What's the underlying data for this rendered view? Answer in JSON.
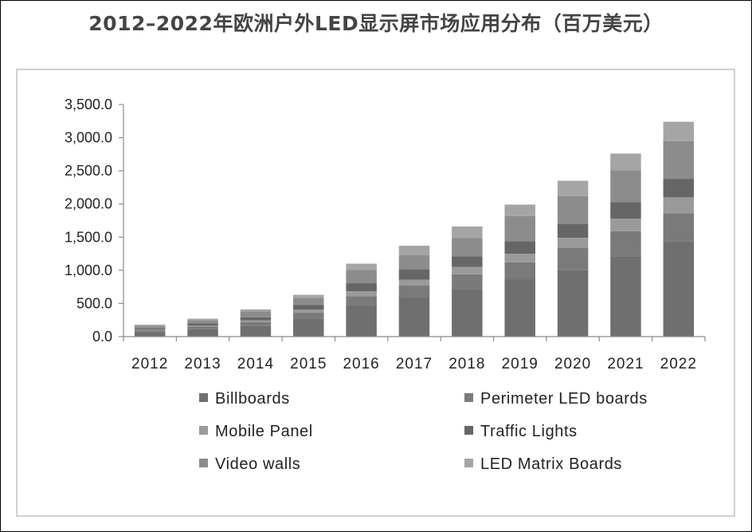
{
  "chart_data": {
    "type": "bar",
    "stacked": true,
    "title": "2012–2022年欧洲户外LED显示屏市场应用分布（百万美元）",
    "xlabel": "",
    "ylabel": "",
    "categories": [
      "2012",
      "2013",
      "2014",
      "2015",
      "2016",
      "2017",
      "2018",
      "2019",
      "2020",
      "2021",
      "2022"
    ],
    "ylim": [
      0,
      3500
    ],
    "yticks": [
      "0.0",
      "500.0",
      "1,000.0",
      "1,500.0",
      "2,000.0",
      "2,500.0",
      "3,000.0",
      "3,500.0"
    ],
    "ytick_values": [
      0,
      500,
      1000,
      1500,
      2000,
      2500,
      3000,
      3500
    ],
    "grid": false,
    "legend_position": "bottom",
    "series": [
      {
        "name": "Billboards",
        "color": "#6f6f6f",
        "values": [
          70,
          110,
          160,
          270,
          470,
          600,
          710,
          860,
          1000,
          1210,
          1440
        ]
      },
      {
        "name": "Perimeter LED boards",
        "color": "#7a7a7a",
        "values": [
          25,
          40,
          60,
          90,
          140,
          170,
          230,
          260,
          340,
          380,
          420
        ]
      },
      {
        "name": "Mobile Panel",
        "color": "#9a9a9a",
        "values": [
          10,
          18,
          25,
          45,
          75,
          90,
          110,
          130,
          150,
          190,
          240
        ]
      },
      {
        "name": "Traffic Lights",
        "color": "#666666",
        "values": [
          20,
          30,
          45,
          70,
          120,
          150,
          160,
          190,
          210,
          250,
          280
        ]
      },
      {
        "name": "Video walls",
        "color": "#8c8c8c",
        "values": [
          35,
          50,
          90,
          110,
          200,
          220,
          280,
          380,
          420,
          480,
          570
        ]
      },
      {
        "name": "LED Matrix Boards",
        "color": "#a5a5a5",
        "values": [
          20,
          22,
          30,
          45,
          95,
          140,
          170,
          170,
          230,
          250,
          290
        ]
      }
    ]
  }
}
